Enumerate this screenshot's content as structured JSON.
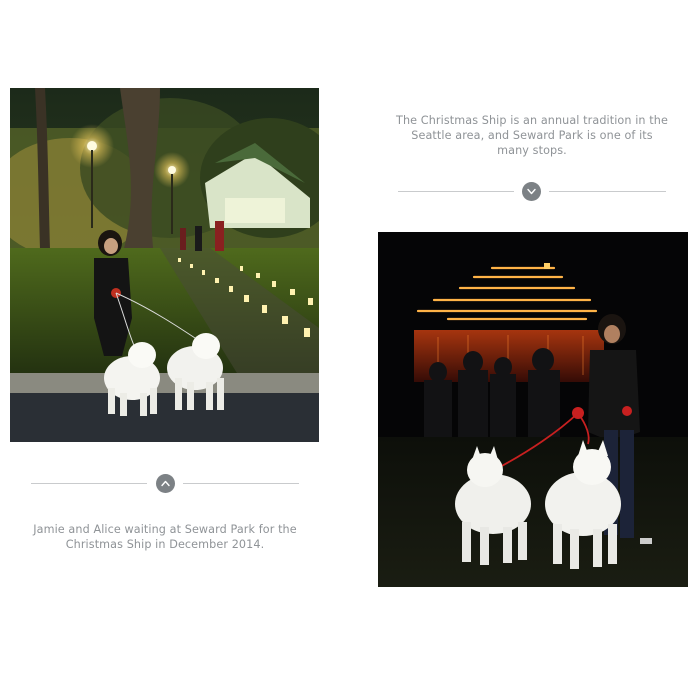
{
  "photos": {
    "left": {
      "icon": "photo-dogs-by-luminaria-path",
      "alt": ""
    },
    "right": {
      "icon": "photo-dogs-with-christmas-ship",
      "alt": ""
    }
  },
  "captions": {
    "top_right": "The Christmas Ship is an annual tradition in the Seattle area, and Seward Park is one of its many stops.",
    "bottom_left": "Jamie and Alice waiting at Seward Park for the Christmas Ship in December 2014."
  },
  "dividers": {
    "top_right": {
      "icon": "chevron-down-icon"
    },
    "bottom_left": {
      "icon": "chevron-up-icon"
    }
  },
  "colors": {
    "caption_text": "#8f9397",
    "divider_line": "#c9cbcd",
    "badge": "#7c8185",
    "ship_lights": "#ffb347"
  }
}
